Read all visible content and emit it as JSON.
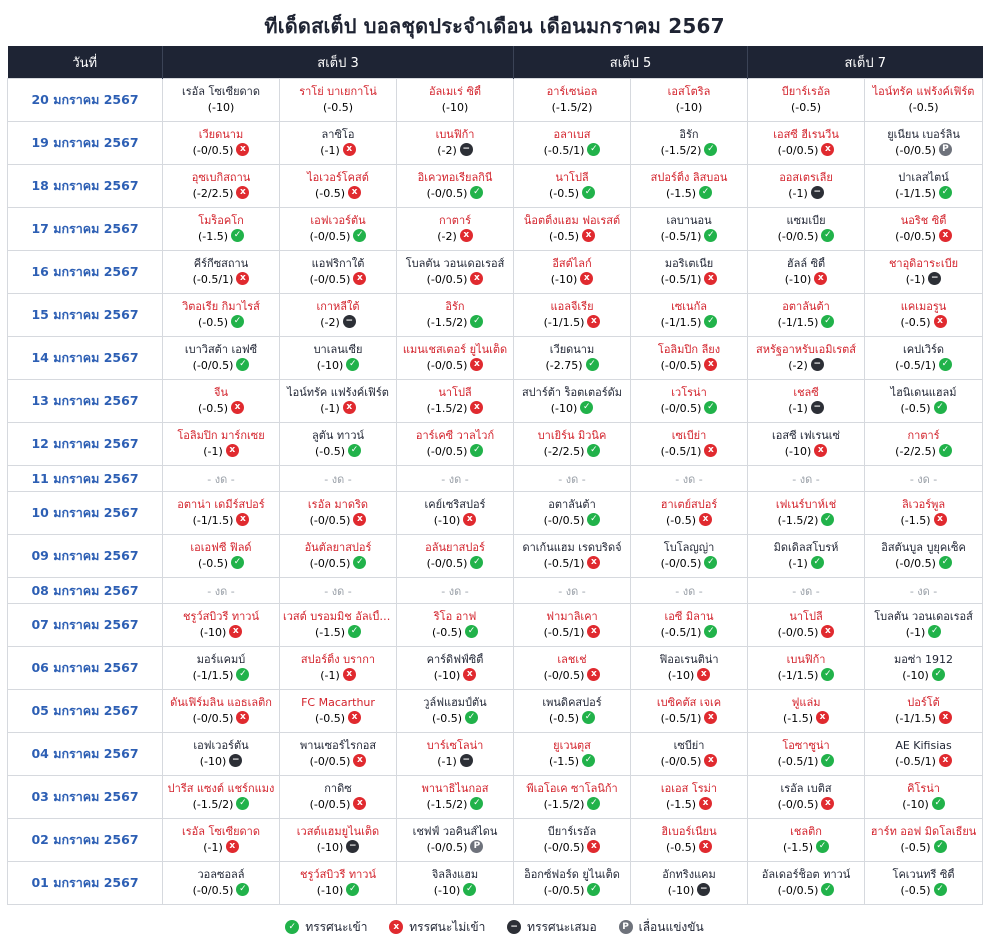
{
  "title": "ทีเด็ดสเต็ป บอลชุดประจำเดือน เดือนมกราคม 2567",
  "header": {
    "date": "วันที่",
    "step3": "สเต็ป 3",
    "step5": "สเต็ป 5",
    "step7": "สเต็ป 7"
  },
  "no_game_text": "- งด -",
  "result_labels": {
    "win": "ทรรศนะเข้า",
    "lose": "ทรรศนะไม่เข้า",
    "draw": "ทรรศนะเสมอ",
    "postponed": "เลื่อนแข่งขัน"
  },
  "result_glyphs": {
    "win": "✓",
    "lose": "x",
    "draw": "−",
    "postponed": "P"
  },
  "colors": {
    "header_bg": "#1e2434",
    "date_text": "#2d5fb4",
    "favorite_team": "#d3232c",
    "underdog_team": "#1f2433",
    "win": "#21b24a",
    "lose": "#e02a2f",
    "draw": "#2c2f36",
    "postponed": "#6e727b"
  },
  "rows": [
    {
      "date": "20 มกราคม 2567",
      "picks": [
        {
          "team": "เรอัล โซเซียดาด",
          "handicap": "(-10)",
          "fav": false,
          "result": null
        },
        {
          "team": "ราโย่ บาเยกาโน่",
          "handicap": "(-0.5)",
          "fav": true,
          "result": null
        },
        {
          "team": "อัลเมเร่ ซิตี้",
          "handicap": "(-10)",
          "fav": true,
          "result": null
        },
        {
          "team": "อาร์เซน่อล",
          "handicap": "(-1.5/2)",
          "fav": true,
          "result": null
        },
        {
          "team": "เอสโตริล",
          "handicap": "(-10)",
          "fav": true,
          "result": null
        },
        {
          "team": "บียาร์เรอัล",
          "handicap": "(-0.5)",
          "fav": true,
          "result": null
        },
        {
          "team": "ไอน์ทรัค แฟร้งค์เฟิร์ต",
          "handicap": "(-0.5)",
          "fav": true,
          "result": null
        }
      ]
    },
    {
      "date": "19 มกราคม 2567",
      "picks": [
        {
          "team": "เวียดนาม",
          "handicap": "(-0/0.5)",
          "fav": true,
          "result": "lose"
        },
        {
          "team": "ลาซิโอ",
          "handicap": "(-1)",
          "fav": false,
          "result": "lose"
        },
        {
          "team": "เบนฟิก้า",
          "handicap": "(-2)",
          "fav": true,
          "result": "draw"
        },
        {
          "team": "อลาเบส",
          "handicap": "(-0.5/1)",
          "fav": true,
          "result": "win"
        },
        {
          "team": "อิรัก",
          "handicap": "(-1.5/2)",
          "fav": false,
          "result": "win"
        },
        {
          "team": "เอสซี ฮีเรนวีน",
          "handicap": "(-0/0.5)",
          "fav": true,
          "result": "lose"
        },
        {
          "team": "ยูเนี่ยน เบอร์ลิน",
          "handicap": "(-0/0.5)",
          "fav": false,
          "result": "postponed"
        }
      ]
    },
    {
      "date": "18 มกราคม 2567",
      "picks": [
        {
          "team": "อุซเบกิสถาน",
          "handicap": "(-2/2.5)",
          "fav": true,
          "result": "lose"
        },
        {
          "team": "ไอเวอร์โคสต์",
          "handicap": "(-0.5)",
          "fav": true,
          "result": "lose"
        },
        {
          "team": "อิเควทอเรียลกินี",
          "handicap": "(-0/0.5)",
          "fav": true,
          "result": "win"
        },
        {
          "team": "นาโปลี",
          "handicap": "(-0.5)",
          "fav": true,
          "result": "win"
        },
        {
          "team": "สปอร์ติ้ง ลิสบอน",
          "handicap": "(-1.5)",
          "fav": true,
          "result": "win"
        },
        {
          "team": "ออสเตรเลีย",
          "handicap": "(-1)",
          "fav": true,
          "result": "draw"
        },
        {
          "team": "ปาเลสไตน์",
          "handicap": "(-1/1.5)",
          "fav": false,
          "result": "win"
        }
      ]
    },
    {
      "date": "17 มกราคม 2567",
      "picks": [
        {
          "team": "โมร็อคโก",
          "handicap": "(-1.5)",
          "fav": true,
          "result": "win"
        },
        {
          "team": "เอฟเวอร์ตัน",
          "handicap": "(-0/0.5)",
          "fav": true,
          "result": "win"
        },
        {
          "team": "กาตาร์",
          "handicap": "(-2)",
          "fav": true,
          "result": "lose"
        },
        {
          "team": "น็อตติ้งแฮม ฟอเรสต์",
          "handicap": "(-0.5)",
          "fav": true,
          "result": "lose"
        },
        {
          "team": "เลบานอน",
          "handicap": "(-0.5/1)",
          "fav": false,
          "result": "win"
        },
        {
          "team": "แซมเบีย",
          "handicap": "(-0/0.5)",
          "fav": false,
          "result": "win"
        },
        {
          "team": "นอริช ซิตี้",
          "handicap": "(-0/0.5)",
          "fav": true,
          "result": "lose"
        }
      ]
    },
    {
      "date": "16 มกราคม 2567",
      "picks": [
        {
          "team": "คีร์กีซสถาน",
          "handicap": "(-0.5/1)",
          "fav": false,
          "result": "lose"
        },
        {
          "team": "แอฟริกาใต้",
          "handicap": "(-0/0.5)",
          "fav": false,
          "result": "lose"
        },
        {
          "team": "โบลตัน วอนเดอเรอส์",
          "handicap": "(-0/0.5)",
          "fav": false,
          "result": "lose"
        },
        {
          "team": "อีสต์ไลก์",
          "handicap": "(-10)",
          "fav": true,
          "result": "lose"
        },
        {
          "team": "มอริเตเนีย",
          "handicap": "(-0.5/1)",
          "fav": false,
          "result": "lose"
        },
        {
          "team": "ฮัลล์ ซิตี้",
          "handicap": "(-10)",
          "fav": false,
          "result": "lose"
        },
        {
          "team": "ชาอุดิอาระเบีย",
          "handicap": "(-1)",
          "fav": true,
          "result": "draw"
        }
      ]
    },
    {
      "date": "15 มกราคม 2567",
      "picks": [
        {
          "team": "วิตอเรีย กิมาไรส์",
          "handicap": "(-0.5)",
          "fav": true,
          "result": "win"
        },
        {
          "team": "เกาหลีใต้",
          "handicap": "(-2)",
          "fav": true,
          "result": "draw"
        },
        {
          "team": "อิรัก",
          "handicap": "(-1.5/2)",
          "fav": true,
          "result": "win"
        },
        {
          "team": "แอลจีเรีย",
          "handicap": "(-1/1.5)",
          "fav": true,
          "result": "lose"
        },
        {
          "team": "เซเนกัล",
          "handicap": "(-1/1.5)",
          "fav": true,
          "result": "win"
        },
        {
          "team": "อตาลันต้า",
          "handicap": "(-1/1.5)",
          "fav": true,
          "result": "win"
        },
        {
          "team": "แคเมอรูน",
          "handicap": "(-0.5)",
          "fav": true,
          "result": "lose"
        }
      ]
    },
    {
      "date": "14 มกราคม 2567",
      "picks": [
        {
          "team": "เบาวิสต้า เอฟซี",
          "handicap": "(-0/0.5)",
          "fav": false,
          "result": "win"
        },
        {
          "team": "บาเลนเซีย",
          "handicap": "(-10)",
          "fav": false,
          "result": "win"
        },
        {
          "team": "แมนเชสเตอร์ ยูไนเต็ด",
          "handicap": "(-0/0.5)",
          "fav": true,
          "result": "lose"
        },
        {
          "team": "เวียดนาม",
          "handicap": "(-2.75)",
          "fav": false,
          "result": "win"
        },
        {
          "team": "โอลิมปิก ลียง",
          "handicap": "(-0/0.5)",
          "fav": true,
          "result": "lose"
        },
        {
          "team": "สหรัฐอาหรับเอมิเรตส์",
          "handicap": "(-2)",
          "fav": true,
          "result": "draw"
        },
        {
          "team": "เคปเวิร์ด",
          "handicap": "(-0.5/1)",
          "fav": false,
          "result": "win"
        }
      ]
    },
    {
      "date": "13 มกราคม 2567",
      "picks": [
        {
          "team": "จีน",
          "handicap": "(-0.5)",
          "fav": true,
          "result": "lose"
        },
        {
          "team": "ไอน์ทรัค แฟร้งค์เฟิร์ต",
          "handicap": "(-1)",
          "fav": false,
          "result": "lose"
        },
        {
          "team": "นาโปลี",
          "handicap": "(-1.5/2)",
          "fav": true,
          "result": "lose"
        },
        {
          "team": "สปาร์ต้า ร็อตเตอร์ดัม",
          "handicap": "(-10)",
          "fav": false,
          "result": "win"
        },
        {
          "team": "เวโรน่า",
          "handicap": "(-0/0.5)",
          "fav": true,
          "result": "win"
        },
        {
          "team": "เชลซี",
          "handicap": "(-1)",
          "fav": true,
          "result": "draw"
        },
        {
          "team": "ไฮนิเดนแฮลม์",
          "handicap": "(-0.5)",
          "fav": false,
          "result": "win"
        }
      ]
    },
    {
      "date": "12 มกราคม 2567",
      "picks": [
        {
          "team": "โอลิมปิก มาร์กเซย",
          "handicap": "(-1)",
          "fav": true,
          "result": "lose"
        },
        {
          "team": "ลูตัน ทาวน์",
          "handicap": "(-0.5)",
          "fav": false,
          "result": "win"
        },
        {
          "team": "อาร์เคซี วาลไวก์",
          "handicap": "(-0/0.5)",
          "fav": true,
          "result": "win"
        },
        {
          "team": "บาเยิร์น มิวนิค",
          "handicap": "(-2/2.5)",
          "fav": true,
          "result": "win"
        },
        {
          "team": "เซเบีย่า",
          "handicap": "(-0.5/1)",
          "fav": true,
          "result": "lose"
        },
        {
          "team": "เอสซี เฟเรนเซ่",
          "handicap": "(-10)",
          "fav": false,
          "result": "lose"
        },
        {
          "team": "กาตาร์",
          "handicap": "(-2/2.5)",
          "fav": true,
          "result": "win"
        }
      ]
    },
    {
      "date": "11 มกราคม 2567",
      "nogame": true
    },
    {
      "date": "10 มกราคม 2567",
      "picks": [
        {
          "team": "อตาน่า เดมีร์สปอร์",
          "handicap": "(-1/1.5)",
          "fav": true,
          "result": "lose"
        },
        {
          "team": "เรอัล มาดริด",
          "handicap": "(-0/0.5)",
          "fav": true,
          "result": "lose"
        },
        {
          "team": "เคย์เซริสปอร์",
          "handicap": "(-10)",
          "fav": false,
          "result": "lose"
        },
        {
          "team": "อตาลันต้า",
          "handicap": "(-0/0.5)",
          "fav": false,
          "result": "win"
        },
        {
          "team": "ฮาเตย์สปอร์",
          "handicap": "(-0.5)",
          "fav": true,
          "result": "lose"
        },
        {
          "team": "เฟเนร์บาห์เช่",
          "handicap": "(-1.5/2)",
          "fav": true,
          "result": "win"
        },
        {
          "team": "ลิเวอร์พูล",
          "handicap": "(-1.5)",
          "fav": true,
          "result": "lose"
        }
      ]
    },
    {
      "date": "09 มกราคม 2567",
      "picks": [
        {
          "team": "เอเอฟซี ฟิลด์",
          "handicap": "(-0.5)",
          "fav": true,
          "result": "win"
        },
        {
          "team": "อันตัลยาสปอร์",
          "handicap": "(-0/0.5)",
          "fav": true,
          "result": "win"
        },
        {
          "team": "อลันยาสปอร์",
          "handicap": "(-0/0.5)",
          "fav": true,
          "result": "win"
        },
        {
          "team": "ดาเก้นแฮม เรดบริดจ์",
          "handicap": "(-0.5/1)",
          "fav": false,
          "result": "lose"
        },
        {
          "team": "โบโลญญ่า",
          "handicap": "(-0/0.5)",
          "fav": false,
          "result": "win"
        },
        {
          "team": "มิดเดิลสโบรห์",
          "handicap": "(-1)",
          "fav": false,
          "result": "win"
        },
        {
          "team": "อิสตันบูล บูยุคเซ็ค",
          "handicap": "(-0/0.5)",
          "fav": false,
          "result": "win"
        }
      ]
    },
    {
      "date": "08 มกราคม 2567",
      "nogame": true
    },
    {
      "date": "07 มกราคม 2567",
      "picks": [
        {
          "team": "ชรูว์สบิวรี่ ทาวน์",
          "handicap": "(-10)",
          "fav": true,
          "result": "lose"
        },
        {
          "team": "เวสต์ บรอมมิช อัลเบี้ยน",
          "handicap": "(-1.5)",
          "fav": true,
          "result": "win"
        },
        {
          "team": "ริโอ อาฟ",
          "handicap": "(-0.5)",
          "fav": true,
          "result": "win"
        },
        {
          "team": "ฟามาลิเคา",
          "handicap": "(-0.5/1)",
          "fav": true,
          "result": "lose"
        },
        {
          "team": "เอซี มิลาน",
          "handicap": "(-0.5/1)",
          "fav": true,
          "result": "win"
        },
        {
          "team": "นาโปลี",
          "handicap": "(-0/0.5)",
          "fav": true,
          "result": "lose"
        },
        {
          "team": "โบลตัน วอนเดอเรอส์",
          "handicap": "(-1)",
          "fav": false,
          "result": "win"
        }
      ]
    },
    {
      "date": "06 มกราคม 2567",
      "picks": [
        {
          "team": "มอร์แคมบ์",
          "handicap": "(-1/1.5)",
          "fav": false,
          "result": "win"
        },
        {
          "team": "สปอร์ติ้ง บรากา",
          "handicap": "(-1)",
          "fav": true,
          "result": "lose"
        },
        {
          "team": "คาร์ดิฟฟ์ซิตี้",
          "handicap": "(-10)",
          "fav": false,
          "result": "lose"
        },
        {
          "team": "เลชเช่",
          "handicap": "(-0/0.5)",
          "fav": true,
          "result": "lose"
        },
        {
          "team": "ฟิออเรนติน่า",
          "handicap": "(-10)",
          "fav": false,
          "result": "lose"
        },
        {
          "team": "เบนฟิก้า",
          "handicap": "(-1/1.5)",
          "fav": true,
          "result": "win"
        },
        {
          "team": "มอซ่า 1912",
          "handicap": "(-10)",
          "fav": false,
          "result": "win"
        }
      ]
    },
    {
      "date": "05 มกราคม 2567",
      "picks": [
        {
          "team": "ดันเฟิร์มลิน แอธเลติก",
          "handicap": "(-0/0.5)",
          "fav": true,
          "result": "lose"
        },
        {
          "team": "FC Macarthur",
          "handicap": "(-0.5)",
          "fav": true,
          "result": "lose"
        },
        {
          "team": "วูล์ฟแฮมป์ตัน",
          "handicap": "(-0.5)",
          "fav": false,
          "result": "win"
        },
        {
          "team": "เพนดิคสปอร์",
          "handicap": "(-0.5)",
          "fav": false,
          "result": "win"
        },
        {
          "team": "เบซิคตัส เจเค",
          "handicap": "(-0.5/1)",
          "fav": true,
          "result": "lose"
        },
        {
          "team": "ฟูแล่ม",
          "handicap": "(-1.5)",
          "fav": true,
          "result": "lose"
        },
        {
          "team": "ปอร์โต้",
          "handicap": "(-1/1.5)",
          "fav": true,
          "result": "lose"
        }
      ]
    },
    {
      "date": "04 มกราคม 2567",
      "picks": [
        {
          "team": "เอฟเวอร์ตัน",
          "handicap": "(-10)",
          "fav": false,
          "result": "draw"
        },
        {
          "team": "พานเซอร์ไรกอส",
          "handicap": "(-0/0.5)",
          "fav": false,
          "result": "lose"
        },
        {
          "team": "บาร์เซโลน่า",
          "handicap": "(-1)",
          "fav": true,
          "result": "draw"
        },
        {
          "team": "ยูเวนตุส",
          "handicap": "(-1.5)",
          "fav": true,
          "result": "win"
        },
        {
          "team": "เซบีย่า",
          "handicap": "(-0/0.5)",
          "fav": false,
          "result": "lose"
        },
        {
          "team": "โอซาซูน่า",
          "handicap": "(-0.5/1)",
          "fav": true,
          "result": "win"
        },
        {
          "team": "AE Kifisias",
          "handicap": "(-0.5/1)",
          "fav": false,
          "result": "lose"
        }
      ]
    },
    {
      "date": "03 มกราคม 2567",
      "picks": [
        {
          "team": "ปารีส แซงต์ แชร์กแมง",
          "handicap": "(-1.5/2)",
          "fav": true,
          "result": "win"
        },
        {
          "team": "กาดิซ",
          "handicap": "(-0/0.5)",
          "fav": false,
          "result": "lose"
        },
        {
          "team": "พานาธิไนกอส",
          "handicap": "(-1.5/2)",
          "fav": true,
          "result": "win"
        },
        {
          "team": "พีเอโอเค ซาโลนิก้า",
          "handicap": "(-1.5/2)",
          "fav": true,
          "result": "win"
        },
        {
          "team": "เอเอส โรม่า",
          "handicap": "(-1.5)",
          "fav": true,
          "result": "lose"
        },
        {
          "team": "เรอัล เบติส",
          "handicap": "(-0/0.5)",
          "fav": false,
          "result": "lose"
        },
        {
          "team": "คิโรน่า",
          "handicap": "(-10)",
          "fav": true,
          "result": "win"
        }
      ]
    },
    {
      "date": "02 มกราคม 2567",
      "picks": [
        {
          "team": "เรอัล โซเซียดาด",
          "handicap": "(-1)",
          "fav": true,
          "result": "lose"
        },
        {
          "team": "เวสต์แฮมยูไนเต็ด",
          "handicap": "(-10)",
          "fav": true,
          "result": "draw"
        },
        {
          "team": "เชฟฟ์ วอคินส์ไดน",
          "handicap": "(-0/0.5)",
          "fav": false,
          "result": "postponed"
        },
        {
          "team": "บียาร์เรอัล",
          "handicap": "(-0/0.5)",
          "fav": false,
          "result": "lose"
        },
        {
          "team": "ฮิเบอร์เนี่ยน",
          "handicap": "(-0.5)",
          "fav": true,
          "result": "lose"
        },
        {
          "team": "เชลติก",
          "handicap": "(-1.5)",
          "fav": true,
          "result": "win"
        },
        {
          "team": "ฮาร์ท ออฟ มิดโลเธี่ยน",
          "handicap": "(-0.5)",
          "fav": true,
          "result": "win"
        }
      ]
    },
    {
      "date": "01 มกราคม 2567",
      "picks": [
        {
          "team": "วอลซอลล์",
          "handicap": "(-0/0.5)",
          "fav": false,
          "result": "win"
        },
        {
          "team": "ชรูว์สบิวรี่ ทาวน์",
          "handicap": "(-10)",
          "fav": true,
          "result": "win"
        },
        {
          "team": "จิลลิ่งแฮม",
          "handicap": "(-10)",
          "fav": false,
          "result": "win"
        },
        {
          "team": "อ็อกซ์ฟอร์ด ยูไนเต็ด",
          "handicap": "(-0/0.5)",
          "fav": false,
          "result": "win"
        },
        {
          "team": "อักทริงแคม",
          "handicap": "(-10)",
          "fav": false,
          "result": "draw"
        },
        {
          "team": "อัลเดอร์ช็อต ทาวน์",
          "handicap": "(-0/0.5)",
          "fav": false,
          "result": "win"
        },
        {
          "team": "โคเวนทรี ซิตี้",
          "handicap": "(-0.5)",
          "fav": false,
          "result": "win"
        }
      ]
    }
  ]
}
